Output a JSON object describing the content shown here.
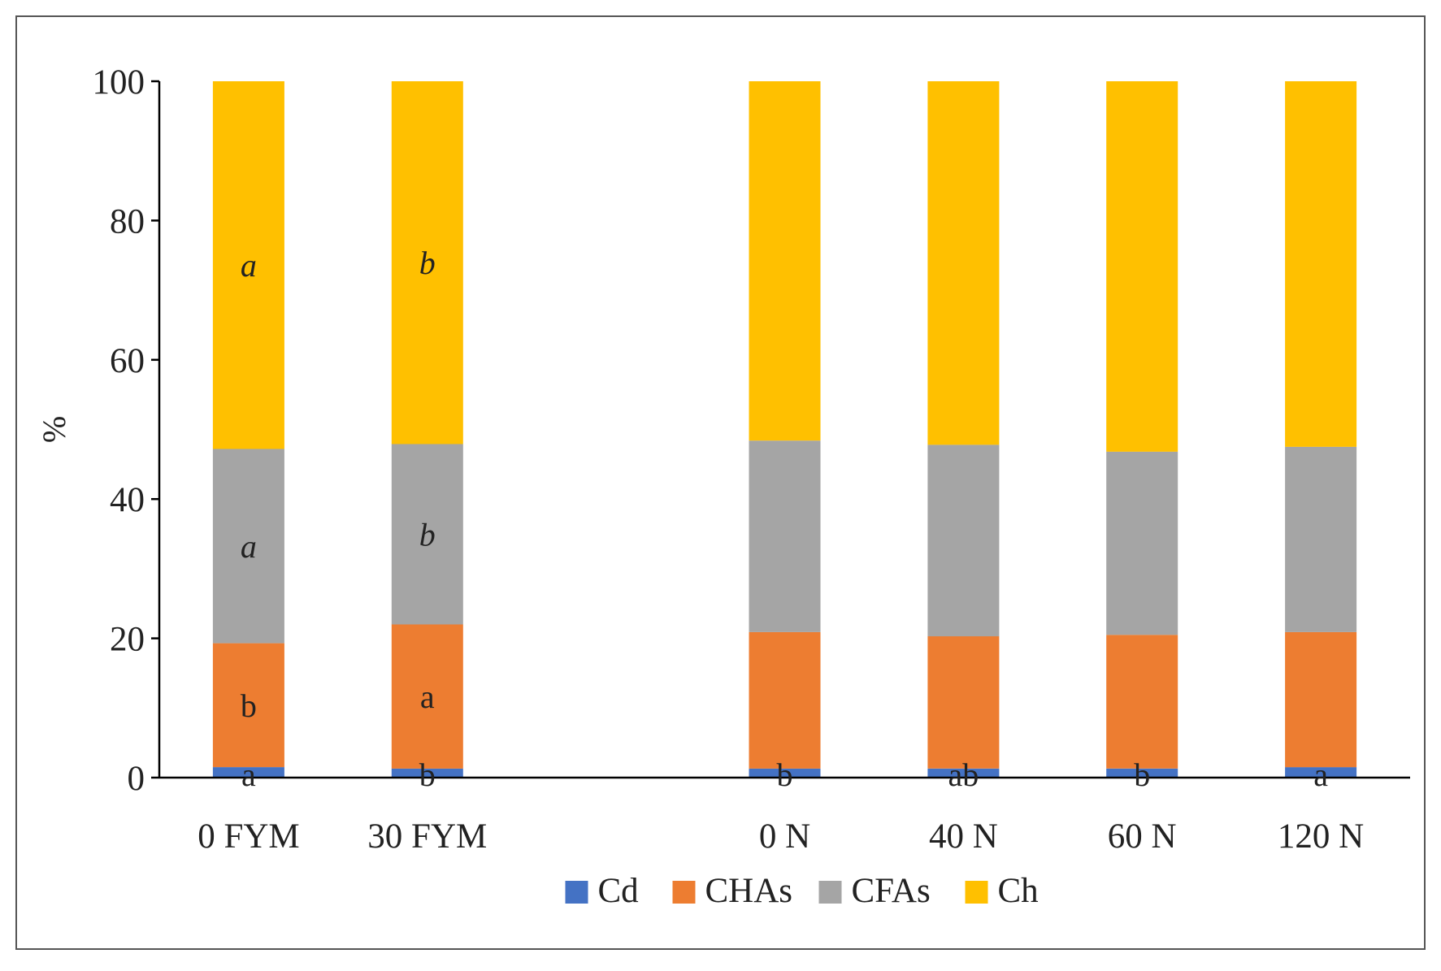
{
  "chart_data": {
    "type": "stacked-bar",
    "title": "",
    "xlabel": "",
    "ylabel": "%",
    "ylim": [
      0,
      100
    ],
    "yticks": [
      "0",
      "20",
      "40",
      "60",
      "80",
      "100"
    ],
    "grid": false,
    "legend_position": "bottom",
    "categories": [
      "0 FYM",
      "30 FYM",
      "",
      "0 N",
      "40 N",
      "60 N",
      "120 N"
    ],
    "series": [
      {
        "name": "Cd",
        "color": "#4472C4",
        "values": [
          1.5,
          1.3,
          null,
          1.3,
          1.3,
          1.3,
          1.5
        ]
      },
      {
        "name": "CHAs",
        "color": "#ED7D31",
        "values": [
          17.8,
          20.7,
          null,
          19.6,
          19.0,
          19.2,
          19.4
        ]
      },
      {
        "name": "CFAs",
        "color": "#A5A5A5",
        "values": [
          27.9,
          25.9,
          null,
          27.5,
          27.5,
          26.3,
          26.6
        ]
      },
      {
        "name": "Ch",
        "color": "#FFC000",
        "values": [
          52.8,
          52.1,
          null,
          51.6,
          52.2,
          53.2,
          52.5
        ]
      }
    ],
    "annotations": [
      {
        "category": "0 FYM",
        "series": "Cd",
        "text": "a",
        "italic": false
      },
      {
        "category": "0 FYM",
        "series": "CHAs",
        "text": "b",
        "italic": false
      },
      {
        "category": "0 FYM",
        "series": "CFAs",
        "text": "a",
        "italic": true
      },
      {
        "category": "0 FYM",
        "series": "Ch",
        "text": "a",
        "italic": true
      },
      {
        "category": "30 FYM",
        "series": "Cd",
        "text": "b",
        "italic": false
      },
      {
        "category": "30 FYM",
        "series": "CHAs",
        "text": "a",
        "italic": false
      },
      {
        "category": "30 FYM",
        "series": "CFAs",
        "text": "b",
        "italic": true
      },
      {
        "category": "30 FYM",
        "series": "Ch",
        "text": "b",
        "italic": true
      },
      {
        "category": "0 N",
        "series": "Cd",
        "text": "b",
        "italic": false
      },
      {
        "category": "40 N",
        "series": "Cd",
        "text": "ab",
        "italic": false
      },
      {
        "category": "60 N",
        "series": "Cd",
        "text": "b",
        "italic": false
      },
      {
        "category": "120 N",
        "series": "Cd",
        "text": "a",
        "italic": false
      }
    ]
  }
}
